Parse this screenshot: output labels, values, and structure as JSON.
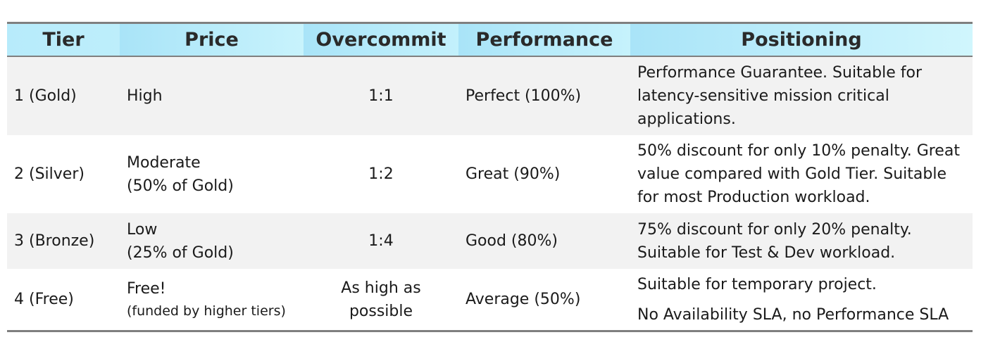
{
  "table": {
    "headers": {
      "tier": "Tier",
      "price": "Price",
      "overcommit": "Overcommit",
      "performance": "Performance",
      "positioning": "Positioning"
    },
    "rows": [
      {
        "tier": "1 (Gold)",
        "price_line1": "High",
        "price_line2": "",
        "overcommit_line1": "1:1",
        "overcommit_line2": "",
        "performance": "Perfect (100%)",
        "positioning_lines": [
          "Performance Guarantee. Suitable for",
          "latency-sensitive mission critical",
          "applications."
        ]
      },
      {
        "tier": "2 (Silver)",
        "price_line1": "Moderate",
        "price_line2": "(50% of Gold)",
        "overcommit_line1": "1:2",
        "overcommit_line2": "",
        "performance": "Great (90%)",
        "positioning_lines": [
          "50% discount for only 10% penalty. Great",
          "value compared with Gold Tier. Suitable",
          "for most Production workload."
        ]
      },
      {
        "tier": "3 (Bronze)",
        "price_line1": "Low",
        "price_line2": "(25% of Gold)",
        "overcommit_line1": "1:4",
        "overcommit_line2": "",
        "performance": "Good (80%)",
        "positioning_lines": [
          "75% discount for only 20% penalty.",
          "Suitable for Test & Dev workload."
        ]
      },
      {
        "tier": "4 (Free)",
        "price_line1": "Free!",
        "price_line2": "(funded by higher tiers)",
        "overcommit_line1": "As high as",
        "overcommit_line2": "possible",
        "performance": "Average (50%)",
        "positioning_lines": [
          "Suitable for temporary project.",
          "No Availability SLA, no Performance SLA"
        ]
      }
    ]
  }
}
